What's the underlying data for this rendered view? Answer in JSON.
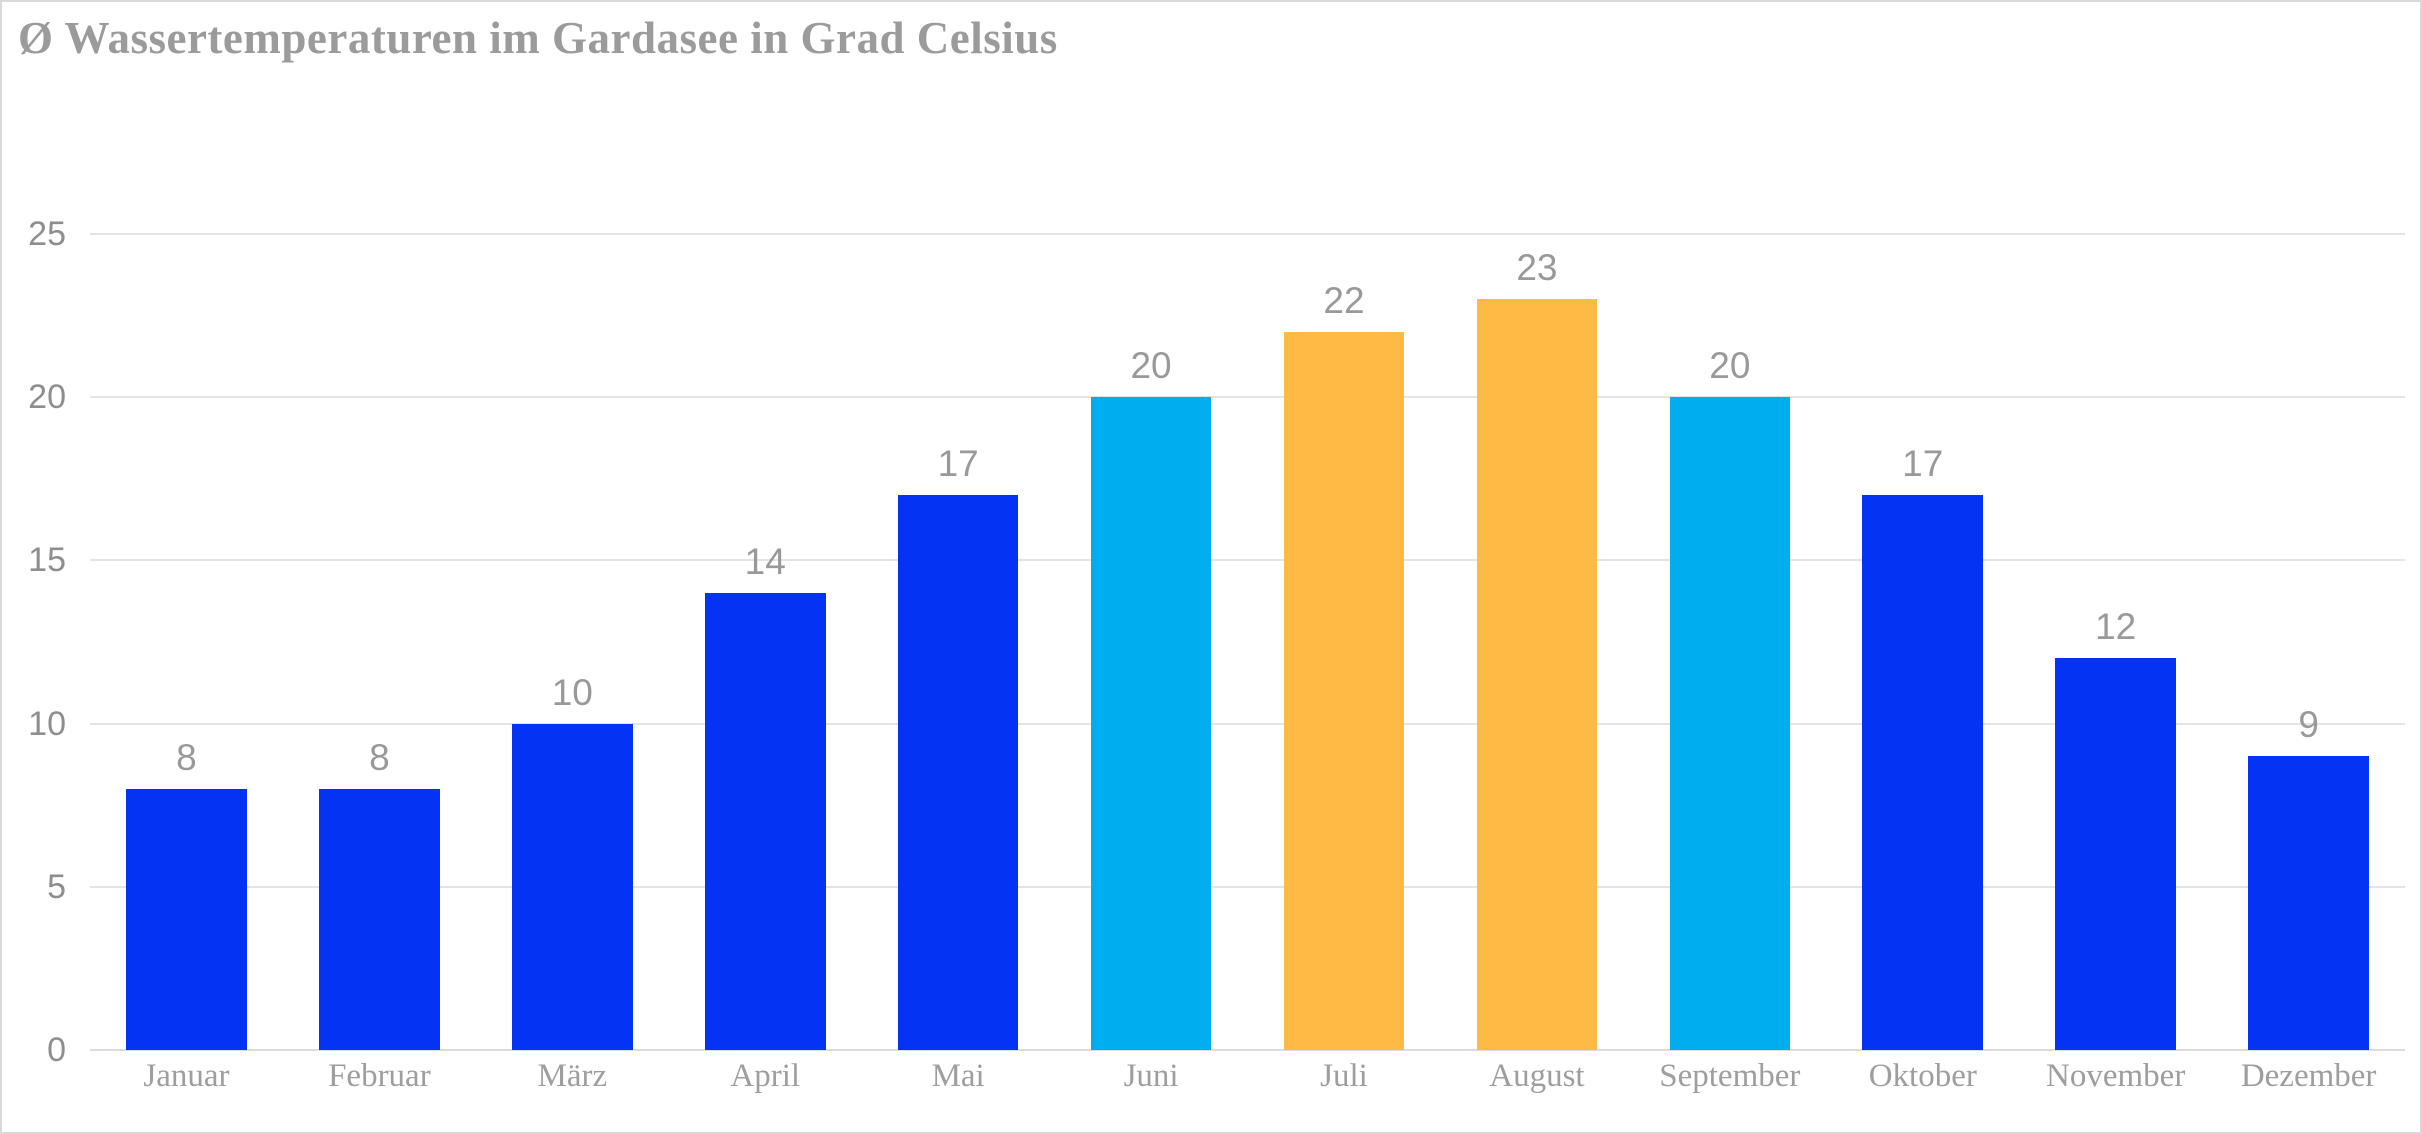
{
  "chart": {
    "title": "Ø Wassertemperaturen im Gardasee in Grad Celsius"
  },
  "chart_data": {
    "type": "bar",
    "title": "Ø Wassertemperaturen im Gardasee in Grad Celsius",
    "categories": [
      "Januar",
      "Februar",
      "März",
      "April",
      "Mai",
      "Juni",
      "Juli",
      "August",
      "September",
      "Oktober",
      "November",
      "Dezember"
    ],
    "values": [
      8,
      8,
      10,
      14,
      17,
      20,
      22,
      23,
      20,
      17,
      12,
      9
    ],
    "bar_colors": [
      "#0533f3",
      "#0533f3",
      "#0533f3",
      "#0533f3",
      "#0533f3",
      "#00aeef",
      "#feba45",
      "#feba45",
      "#00aeef",
      "#0533f3",
      "#0533f3",
      "#0533f3"
    ],
    "xlabel": "",
    "ylabel": "",
    "ylim": [
      0,
      25
    ],
    "yticks": [
      0,
      5,
      10,
      15,
      20,
      25
    ],
    "grid": true,
    "legend": "none",
    "colors": {
      "default_bar": "#0533f3",
      "highlight_cyan": "#00aeef",
      "highlight_orange": "#feba45",
      "title_text": "#9b9b9b",
      "axis_text": "#8e8e8e",
      "value_label_text": "#999999",
      "gridline": "#e4e4e4",
      "border": "#d9d9d9",
      "background": "#ffffff"
    }
  }
}
